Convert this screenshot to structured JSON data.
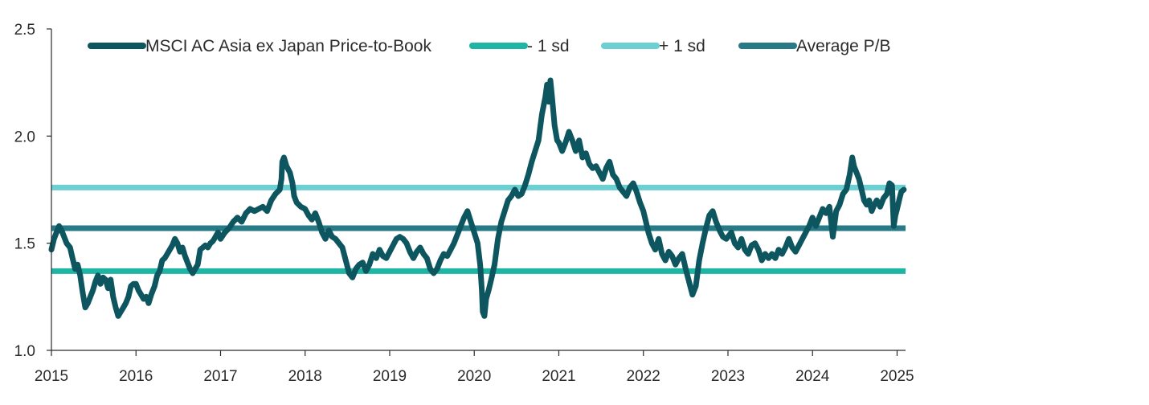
{
  "chart_data": {
    "type": "line",
    "title": "",
    "xlabel": "",
    "ylabel": "",
    "xlim": [
      2015.0,
      2025.1
    ],
    "ylim": [
      1.0,
      2.5
    ],
    "x_ticks": [
      "2015",
      "2016",
      "2017",
      "2018",
      "2019",
      "2020",
      "2021",
      "2022",
      "2023",
      "2024",
      "2025"
    ],
    "y_ticks": [
      "1.0",
      "1.5",
      "2.0",
      "2.5"
    ],
    "grid": false,
    "legend_position": "top",
    "series": [
      {
        "name": "MSCI AC Asia ex Japan Price-to-Book",
        "color": "#0d5660",
        "points": [
          [
            2015.0,
            1.47
          ],
          [
            2015.03,
            1.52
          ],
          [
            2015.06,
            1.55
          ],
          [
            2015.09,
            1.58
          ],
          [
            2015.12,
            1.56
          ],
          [
            2015.15,
            1.53
          ],
          [
            2015.18,
            1.5
          ],
          [
            2015.22,
            1.48
          ],
          [
            2015.25,
            1.43
          ],
          [
            2015.28,
            1.38
          ],
          [
            2015.31,
            1.4
          ],
          [
            2015.34,
            1.35
          ],
          [
            2015.37,
            1.27
          ],
          [
            2015.4,
            1.2
          ],
          [
            2015.43,
            1.22
          ],
          [
            2015.46,
            1.25
          ],
          [
            2015.49,
            1.28
          ],
          [
            2015.52,
            1.32
          ],
          [
            2015.55,
            1.35
          ],
          [
            2015.58,
            1.31
          ],
          [
            2015.61,
            1.34
          ],
          [
            2015.64,
            1.33
          ],
          [
            2015.67,
            1.29
          ],
          [
            2015.7,
            1.33
          ],
          [
            2015.73,
            1.25
          ],
          [
            2015.76,
            1.2
          ],
          [
            2015.79,
            1.16
          ],
          [
            2015.82,
            1.18
          ],
          [
            2015.85,
            1.2
          ],
          [
            2015.88,
            1.22
          ],
          [
            2015.91,
            1.25
          ],
          [
            2015.94,
            1.3
          ],
          [
            2015.97,
            1.31
          ],
          [
            2016.0,
            1.31
          ],
          [
            2016.03,
            1.28
          ],
          [
            2016.06,
            1.26
          ],
          [
            2016.09,
            1.24
          ],
          [
            2016.12,
            1.25
          ],
          [
            2016.15,
            1.22
          ],
          [
            2016.18,
            1.26
          ],
          [
            2016.22,
            1.3
          ],
          [
            2016.25,
            1.35
          ],
          [
            2016.28,
            1.37
          ],
          [
            2016.31,
            1.42
          ],
          [
            2016.34,
            1.43
          ],
          [
            2016.37,
            1.45
          ],
          [
            2016.4,
            1.47
          ],
          [
            2016.43,
            1.49
          ],
          [
            2016.46,
            1.52
          ],
          [
            2016.49,
            1.5
          ],
          [
            2016.52,
            1.46
          ],
          [
            2016.55,
            1.48
          ],
          [
            2016.58,
            1.44
          ],
          [
            2016.61,
            1.41
          ],
          [
            2016.64,
            1.38
          ],
          [
            2016.67,
            1.36
          ],
          [
            2016.7,
            1.38
          ],
          [
            2016.73,
            1.4
          ],
          [
            2016.76,
            1.47
          ],
          [
            2016.79,
            1.48
          ],
          [
            2016.82,
            1.49
          ],
          [
            2016.85,
            1.48
          ],
          [
            2016.88,
            1.5
          ],
          [
            2016.91,
            1.51
          ],
          [
            2016.94,
            1.53
          ],
          [
            2016.97,
            1.55
          ],
          [
            2017.0,
            1.52
          ],
          [
            2017.05,
            1.55
          ],
          [
            2017.1,
            1.57
          ],
          [
            2017.15,
            1.6
          ],
          [
            2017.2,
            1.62
          ],
          [
            2017.25,
            1.6
          ],
          [
            2017.3,
            1.64
          ],
          [
            2017.35,
            1.66
          ],
          [
            2017.4,
            1.65
          ],
          [
            2017.45,
            1.66
          ],
          [
            2017.5,
            1.67
          ],
          [
            2017.55,
            1.65
          ],
          [
            2017.6,
            1.7
          ],
          [
            2017.65,
            1.73
          ],
          [
            2017.7,
            1.75
          ],
          [
            2017.72,
            1.8
          ],
          [
            2017.73,
            1.88
          ],
          [
            2017.75,
            1.9
          ],
          [
            2017.78,
            1.86
          ],
          [
            2017.82,
            1.83
          ],
          [
            2017.85,
            1.78
          ],
          [
            2017.87,
            1.72
          ],
          [
            2017.9,
            1.69
          ],
          [
            2017.95,
            1.67
          ],
          [
            2018.0,
            1.66
          ],
          [
            2018.04,
            1.63
          ],
          [
            2018.08,
            1.61
          ],
          [
            2018.12,
            1.64
          ],
          [
            2018.16,
            1.6
          ],
          [
            2018.2,
            1.55
          ],
          [
            2018.24,
            1.52
          ],
          [
            2018.28,
            1.56
          ],
          [
            2018.32,
            1.53
          ],
          [
            2018.36,
            1.52
          ],
          [
            2018.4,
            1.5
          ],
          [
            2018.44,
            1.48
          ],
          [
            2018.48,
            1.42
          ],
          [
            2018.52,
            1.36
          ],
          [
            2018.56,
            1.34
          ],
          [
            2018.6,
            1.38
          ],
          [
            2018.64,
            1.4
          ],
          [
            2018.68,
            1.41
          ],
          [
            2018.72,
            1.37
          ],
          [
            2018.76,
            1.4
          ],
          [
            2018.8,
            1.45
          ],
          [
            2018.84,
            1.43
          ],
          [
            2018.88,
            1.47
          ],
          [
            2018.92,
            1.44
          ],
          [
            2018.96,
            1.43
          ],
          [
            2019.0,
            1.46
          ],
          [
            2019.04,
            1.49
          ],
          [
            2019.08,
            1.52
          ],
          [
            2019.12,
            1.53
          ],
          [
            2019.16,
            1.52
          ],
          [
            2019.2,
            1.5
          ],
          [
            2019.24,
            1.46
          ],
          [
            2019.28,
            1.43
          ],
          [
            2019.32,
            1.46
          ],
          [
            2019.36,
            1.48
          ],
          [
            2019.4,
            1.45
          ],
          [
            2019.44,
            1.43
          ],
          [
            2019.48,
            1.38
          ],
          [
            2019.52,
            1.36
          ],
          [
            2019.56,
            1.38
          ],
          [
            2019.6,
            1.42
          ],
          [
            2019.64,
            1.45
          ],
          [
            2019.68,
            1.44
          ],
          [
            2019.72,
            1.47
          ],
          [
            2019.76,
            1.5
          ],
          [
            2019.8,
            1.54
          ],
          [
            2019.84,
            1.58
          ],
          [
            2019.88,
            1.62
          ],
          [
            2019.92,
            1.65
          ],
          [
            2019.96,
            1.6
          ],
          [
            2020.0,
            1.55
          ],
          [
            2020.04,
            1.5
          ],
          [
            2020.07,
            1.4
          ],
          [
            2020.09,
            1.28
          ],
          [
            2020.1,
            1.18
          ],
          [
            2020.12,
            1.16
          ],
          [
            2020.14,
            1.24
          ],
          [
            2020.17,
            1.28
          ],
          [
            2020.2,
            1.33
          ],
          [
            2020.24,
            1.4
          ],
          [
            2020.28,
            1.52
          ],
          [
            2020.32,
            1.6
          ],
          [
            2020.36,
            1.65
          ],
          [
            2020.4,
            1.7
          ],
          [
            2020.44,
            1.72
          ],
          [
            2020.48,
            1.75
          ],
          [
            2020.52,
            1.72
          ],
          [
            2020.56,
            1.73
          ],
          [
            2020.6,
            1.77
          ],
          [
            2020.64,
            1.82
          ],
          [
            2020.68,
            1.88
          ],
          [
            2020.72,
            1.93
          ],
          [
            2020.76,
            1.98
          ],
          [
            2020.8,
            2.1
          ],
          [
            2020.84,
            2.18
          ],
          [
            2020.86,
            2.24
          ],
          [
            2020.88,
            2.16
          ],
          [
            2020.9,
            2.26
          ],
          [
            2020.92,
            2.18
          ],
          [
            2020.95,
            2.05
          ],
          [
            2020.98,
            1.98
          ],
          [
            2021.0,
            1.97
          ],
          [
            2021.04,
            1.93
          ],
          [
            2021.08,
            1.97
          ],
          [
            2021.12,
            2.02
          ],
          [
            2021.16,
            1.98
          ],
          [
            2021.2,
            1.93
          ],
          [
            2021.24,
            1.98
          ],
          [
            2021.28,
            1.9
          ],
          [
            2021.32,
            1.92
          ],
          [
            2021.36,
            1.87
          ],
          [
            2021.4,
            1.85
          ],
          [
            2021.44,
            1.86
          ],
          [
            2021.48,
            1.83
          ],
          [
            2021.52,
            1.8
          ],
          [
            2021.56,
            1.85
          ],
          [
            2021.6,
            1.88
          ],
          [
            2021.64,
            1.82
          ],
          [
            2021.68,
            1.8
          ],
          [
            2021.72,
            1.76
          ],
          [
            2021.76,
            1.74
          ],
          [
            2021.8,
            1.72
          ],
          [
            2021.84,
            1.76
          ],
          [
            2021.88,
            1.78
          ],
          [
            2021.92,
            1.74
          ],
          [
            2021.96,
            1.69
          ],
          [
            2022.0,
            1.65
          ],
          [
            2022.03,
            1.6
          ],
          [
            2022.06,
            1.55
          ],
          [
            2022.1,
            1.5
          ],
          [
            2022.14,
            1.47
          ],
          [
            2022.18,
            1.52
          ],
          [
            2022.22,
            1.45
          ],
          [
            2022.26,
            1.42
          ],
          [
            2022.3,
            1.46
          ],
          [
            2022.34,
            1.44
          ],
          [
            2022.38,
            1.4
          ],
          [
            2022.42,
            1.43
          ],
          [
            2022.46,
            1.45
          ],
          [
            2022.5,
            1.38
          ],
          [
            2022.54,
            1.32
          ],
          [
            2022.58,
            1.26
          ],
          [
            2022.62,
            1.3
          ],
          [
            2022.66,
            1.42
          ],
          [
            2022.7,
            1.5
          ],
          [
            2022.74,
            1.57
          ],
          [
            2022.78,
            1.63
          ],
          [
            2022.82,
            1.65
          ],
          [
            2022.86,
            1.6
          ],
          [
            2022.9,
            1.56
          ],
          [
            2022.94,
            1.53
          ],
          [
            2022.98,
            1.52
          ],
          [
            2023.0,
            1.53
          ],
          [
            2023.04,
            1.55
          ],
          [
            2023.08,
            1.5
          ],
          [
            2023.12,
            1.48
          ],
          [
            2023.16,
            1.52
          ],
          [
            2023.2,
            1.47
          ],
          [
            2023.24,
            1.45
          ],
          [
            2023.28,
            1.49
          ],
          [
            2023.32,
            1.5
          ],
          [
            2023.36,
            1.47
          ],
          [
            2023.4,
            1.42
          ],
          [
            2023.44,
            1.45
          ],
          [
            2023.48,
            1.43
          ],
          [
            2023.52,
            1.45
          ],
          [
            2023.56,
            1.43
          ],
          [
            2023.6,
            1.47
          ],
          [
            2023.64,
            1.45
          ],
          [
            2023.68,
            1.48
          ],
          [
            2023.72,
            1.52
          ],
          [
            2023.76,
            1.48
          ],
          [
            2023.8,
            1.46
          ],
          [
            2023.84,
            1.49
          ],
          [
            2023.88,
            1.52
          ],
          [
            2023.92,
            1.55
          ],
          [
            2023.96,
            1.58
          ],
          [
            2024.0,
            1.62
          ],
          [
            2024.04,
            1.58
          ],
          [
            2024.08,
            1.62
          ],
          [
            2024.12,
            1.66
          ],
          [
            2024.16,
            1.64
          ],
          [
            2024.2,
            1.67
          ],
          [
            2024.24,
            1.53
          ],
          [
            2024.28,
            1.65
          ],
          [
            2024.32,
            1.68
          ],
          [
            2024.36,
            1.73
          ],
          [
            2024.4,
            1.75
          ],
          [
            2024.44,
            1.82
          ],
          [
            2024.47,
            1.9
          ],
          [
            2024.49,
            1.86
          ],
          [
            2024.52,
            1.83
          ],
          [
            2024.55,
            1.8
          ],
          [
            2024.58,
            1.75
          ],
          [
            2024.61,
            1.7
          ],
          [
            2024.64,
            1.68
          ],
          [
            2024.67,
            1.7
          ],
          [
            2024.7,
            1.65
          ],
          [
            2024.73,
            1.68
          ],
          [
            2024.76,
            1.7
          ],
          [
            2024.8,
            1.67
          ],
          [
            2024.84,
            1.71
          ],
          [
            2024.88,
            1.73
          ],
          [
            2024.91,
            1.78
          ],
          [
            2024.94,
            1.77
          ],
          [
            2024.96,
            1.58
          ],
          [
            2024.98,
            1.63
          ],
          [
            2025.0,
            1.66
          ],
          [
            2025.03,
            1.71
          ],
          [
            2025.05,
            1.74
          ],
          [
            2025.08,
            1.75
          ]
        ]
      },
      {
        "name": "- 1 sd",
        "color": "#1fb5a5",
        "constant": 1.37
      },
      {
        "name": "+ 1 sd",
        "color": "#6ccfd2",
        "constant": 1.76
      },
      {
        "name": "Average P/B",
        "color": "#277a86",
        "constant": 1.57
      }
    ]
  }
}
